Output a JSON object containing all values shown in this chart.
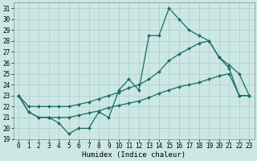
{
  "xlabel": "Humidex (Indice chaleur)",
  "ylabel": "",
  "bg_color": "#cce8e4",
  "grid_color": "#aaccc8",
  "line_color": "#1a6b6b",
  "ylim": [
    19,
    31.5
  ],
  "xlim": [
    -0.5,
    23.5
  ],
  "yticks": [
    19,
    20,
    21,
    22,
    23,
    24,
    25,
    26,
    27,
    28,
    29,
    30,
    31
  ],
  "xticks": [
    0,
    1,
    2,
    3,
    4,
    5,
    6,
    7,
    8,
    9,
    10,
    11,
    12,
    13,
    14,
    15,
    16,
    17,
    18,
    19,
    20,
    21,
    22,
    23
  ],
  "line1_x": [
    0,
    1,
    2,
    3,
    4,
    5,
    6,
    7,
    8,
    9,
    10,
    11,
    12,
    13,
    14,
    15,
    16,
    17,
    18,
    19,
    20,
    21,
    22,
    23
  ],
  "line1_y": [
    23,
    21.5,
    21,
    21,
    20.5,
    19.5,
    20,
    20,
    21.5,
    21,
    23.5,
    24.5,
    23.5,
    28.5,
    28.5,
    31,
    30,
    29,
    28.5,
    28,
    26.5,
    25.5,
    23,
    23
  ],
  "line2_x": [
    0,
    1,
    2,
    3,
    4,
    5,
    6,
    7,
    8,
    9,
    10,
    11,
    12,
    13,
    14,
    15,
    16,
    17,
    18,
    19,
    20,
    21,
    22,
    23
  ],
  "line2_y": [
    23,
    22,
    22,
    22,
    22,
    22,
    22.2,
    22.4,
    22.7,
    23.0,
    23.3,
    23.7,
    24.0,
    24.5,
    25.2,
    26.2,
    26.8,
    27.3,
    27.8,
    28.0,
    26.5,
    25.8,
    25.0,
    23
  ],
  "line3_x": [
    0,
    1,
    2,
    3,
    4,
    5,
    6,
    7,
    8,
    9,
    10,
    11,
    12,
    13,
    14,
    15,
    16,
    17,
    18,
    19,
    20,
    21,
    22,
    23
  ],
  "line3_y": [
    23,
    21.5,
    21,
    21,
    21,
    21,
    21.2,
    21.4,
    21.6,
    21.9,
    22.1,
    22.3,
    22.5,
    22.8,
    23.2,
    23.5,
    23.8,
    24.0,
    24.2,
    24.5,
    24.8,
    25.0,
    23.0,
    23.0
  ],
  "marker_size": 2.0,
  "line_width": 0.9,
  "tick_fontsize": 5.5,
  "xlabel_fontsize": 6.5
}
